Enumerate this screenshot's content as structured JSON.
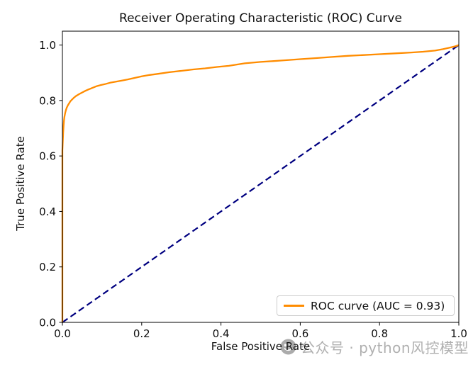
{
  "chart_data": {
    "type": "line",
    "title": "Receiver Operating Characteristic (ROC) Curve",
    "xlabel": "False Positive Rate",
    "ylabel": "True Positive Rate",
    "xlim": [
      0.0,
      1.0
    ],
    "ylim": [
      0.0,
      1.05
    ],
    "x_ticks": [
      0.0,
      0.2,
      0.4,
      0.6,
      0.8,
      1.0
    ],
    "x_tick_labels": [
      "0.0",
      "0.2",
      "0.4",
      "0.6",
      "0.8",
      "1.0"
    ],
    "y_ticks": [
      0.0,
      0.2,
      0.4,
      0.6,
      0.8,
      1.0
    ],
    "y_tick_labels": [
      "0.0",
      "0.2",
      "0.4",
      "0.6",
      "0.8",
      "1.0"
    ],
    "grid": false,
    "axis_color": "#000000",
    "tick_color": "#101010",
    "auc": 0.93,
    "legend": {
      "position": "lower right",
      "entries": [
        {
          "label": "ROC curve (AUC = 0.93)",
          "color": "#ff8c00",
          "linestyle": "solid"
        }
      ]
    },
    "series": [
      {
        "name": "chance-diagonal",
        "color": "#000080",
        "linewidth": 2.2,
        "linestyle": "dashed",
        "points": [
          [
            0,
            0
          ],
          [
            1,
            1
          ]
        ]
      },
      {
        "name": "roc-curve",
        "color": "#ff8c00",
        "linewidth": 2.3,
        "linestyle": "solid",
        "points": [
          [
            0,
            0
          ],
          [
            0,
            0.62
          ],
          [
            0.001,
            0.655
          ],
          [
            0.002,
            0.685
          ],
          [
            0.003,
            0.71
          ],
          [
            0.004,
            0.727
          ],
          [
            0.005,
            0.74
          ],
          [
            0.007,
            0.755
          ],
          [
            0.009,
            0.766
          ],
          [
            0.011,
            0.774
          ],
          [
            0.014,
            0.783
          ],
          [
            0.017,
            0.79
          ],
          [
            0.02,
            0.797
          ],
          [
            0.024,
            0.803
          ],
          [
            0.029,
            0.81
          ],
          [
            0.035,
            0.817
          ],
          [
            0.042,
            0.823
          ],
          [
            0.05,
            0.829
          ],
          [
            0.058,
            0.835
          ],
          [
            0.066,
            0.84
          ],
          [
            0.075,
            0.845
          ],
          [
            0.085,
            0.851
          ],
          [
            0.095,
            0.855
          ],
          [
            0.107,
            0.859
          ],
          [
            0.12,
            0.864
          ],
          [
            0.135,
            0.868
          ],
          [
            0.15,
            0.872
          ],
          [
            0.165,
            0.876
          ],
          [
            0.18,
            0.881
          ],
          [
            0.2,
            0.887
          ],
          [
            0.22,
            0.892
          ],
          [
            0.24,
            0.896
          ],
          [
            0.27,
            0.902
          ],
          [
            0.3,
            0.907
          ],
          [
            0.33,
            0.912
          ],
          [
            0.36,
            0.916
          ],
          [
            0.39,
            0.921
          ],
          [
            0.42,
            0.925
          ],
          [
            0.46,
            0.934
          ],
          [
            0.5,
            0.939
          ],
          [
            0.53,
            0.942
          ],
          [
            0.56,
            0.945
          ],
          [
            0.6,
            0.949
          ],
          [
            0.64,
            0.953
          ],
          [
            0.68,
            0.957
          ],
          [
            0.72,
            0.961
          ],
          [
            0.76,
            0.964
          ],
          [
            0.8,
            0.967
          ],
          [
            0.84,
            0.97
          ],
          [
            0.88,
            0.973
          ],
          [
            0.91,
            0.976
          ],
          [
            0.94,
            0.98
          ],
          [
            0.96,
            0.985
          ],
          [
            0.975,
            0.99
          ],
          [
            0.99,
            0.995
          ],
          [
            1,
            1
          ]
        ]
      }
    ]
  },
  "watermark": {
    "icon": "wechat-icon",
    "text": "公众号 · python风控模型",
    "color": "#b0b0b0",
    "icon_color": "#9d9d9d"
  }
}
